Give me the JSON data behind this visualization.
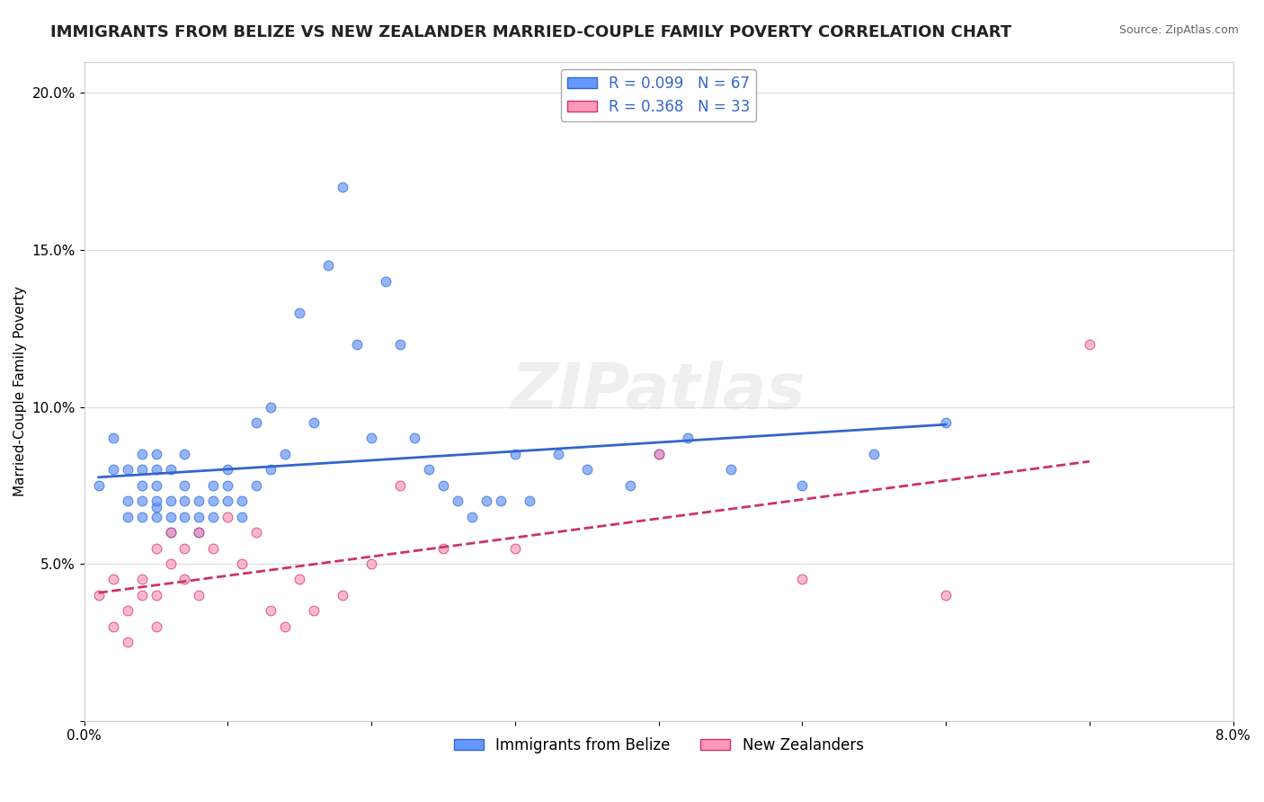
{
  "title": "IMMIGRANTS FROM BELIZE VS NEW ZEALANDER MARRIED-COUPLE FAMILY POVERTY CORRELATION CHART",
  "source": "Source: ZipAtlas.com",
  "xlabel": "",
  "ylabel": "Married-Couple Family Poverty",
  "watermark": "ZIPatlas",
  "xlim": [
    0.0,
    0.08
  ],
  "ylim": [
    0.0,
    0.21
  ],
  "xticks": [
    0.0,
    0.01,
    0.02,
    0.03,
    0.04,
    0.05,
    0.06,
    0.07,
    0.08
  ],
  "xtick_labels": [
    "0.0%",
    "",
    "",
    "",
    "",
    "",
    "",
    "",
    "8.0%"
  ],
  "yticks": [
    0.0,
    0.05,
    0.1,
    0.15,
    0.2
  ],
  "ytick_labels": [
    "",
    "5.0%",
    "10.0%",
    "15.0%",
    "20.0%"
  ],
  "series1_name": "Immigrants from Belize",
  "series1_R": "0.099",
  "series1_N": "67",
  "series1_color": "#6699ff",
  "series1_line_color": "#3366cc",
  "series2_name": "New Zealanders",
  "series2_R": "0.368",
  "series2_N": "33",
  "series2_color": "#ff99bb",
  "series2_line_color": "#cc3366",
  "background_color": "#ffffff",
  "grid_color": "#dddddd",
  "title_fontsize": 13,
  "axis_fontsize": 11,
  "legend_fontsize": 12,
  "series1_x": [
    0.001,
    0.002,
    0.002,
    0.003,
    0.003,
    0.003,
    0.004,
    0.004,
    0.004,
    0.004,
    0.004,
    0.005,
    0.005,
    0.005,
    0.005,
    0.005,
    0.005,
    0.006,
    0.006,
    0.006,
    0.006,
    0.007,
    0.007,
    0.007,
    0.007,
    0.008,
    0.008,
    0.008,
    0.009,
    0.009,
    0.009,
    0.01,
    0.01,
    0.01,
    0.011,
    0.011,
    0.012,
    0.012,
    0.013,
    0.013,
    0.014,
    0.015,
    0.016,
    0.017,
    0.018,
    0.019,
    0.02,
    0.021,
    0.022,
    0.023,
    0.024,
    0.025,
    0.026,
    0.027,
    0.028,
    0.029,
    0.03,
    0.031,
    0.033,
    0.035,
    0.038,
    0.04,
    0.042,
    0.045,
    0.05,
    0.055,
    0.06
  ],
  "series1_y": [
    0.075,
    0.08,
    0.09,
    0.065,
    0.07,
    0.08,
    0.065,
    0.07,
    0.075,
    0.08,
    0.085,
    0.065,
    0.068,
    0.07,
    0.075,
    0.08,
    0.085,
    0.06,
    0.065,
    0.07,
    0.08,
    0.065,
    0.07,
    0.075,
    0.085,
    0.06,
    0.065,
    0.07,
    0.065,
    0.07,
    0.075,
    0.07,
    0.075,
    0.08,
    0.065,
    0.07,
    0.075,
    0.095,
    0.08,
    0.1,
    0.085,
    0.13,
    0.095,
    0.145,
    0.17,
    0.12,
    0.09,
    0.14,
    0.12,
    0.09,
    0.08,
    0.075,
    0.07,
    0.065,
    0.07,
    0.07,
    0.085,
    0.07,
    0.085,
    0.08,
    0.075,
    0.085,
    0.09,
    0.08,
    0.075,
    0.085,
    0.095
  ],
  "series2_x": [
    0.001,
    0.002,
    0.002,
    0.003,
    0.003,
    0.004,
    0.004,
    0.005,
    0.005,
    0.005,
    0.006,
    0.006,
    0.007,
    0.007,
    0.008,
    0.008,
    0.009,
    0.01,
    0.011,
    0.012,
    0.013,
    0.014,
    0.015,
    0.016,
    0.018,
    0.02,
    0.022,
    0.025,
    0.03,
    0.04,
    0.05,
    0.06,
    0.07
  ],
  "series2_y": [
    0.04,
    0.03,
    0.045,
    0.025,
    0.035,
    0.04,
    0.045,
    0.055,
    0.03,
    0.04,
    0.05,
    0.06,
    0.045,
    0.055,
    0.04,
    0.06,
    0.055,
    0.065,
    0.05,
    0.06,
    0.035,
    0.03,
    0.045,
    0.035,
    0.04,
    0.05,
    0.075,
    0.055,
    0.055,
    0.085,
    0.045,
    0.04,
    0.12
  ]
}
